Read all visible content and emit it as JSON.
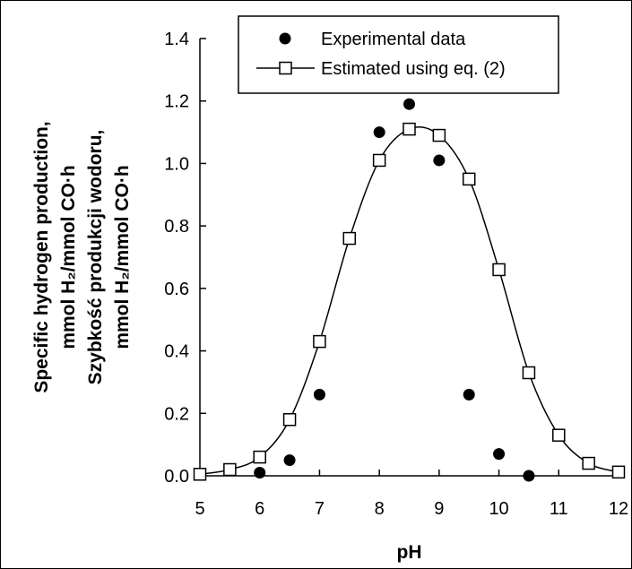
{
  "chart_data": {
    "type": "scatter",
    "xlabel": "pH",
    "ylabel_lines": [
      "Specific hydrogen production,",
      "mmol H₂/mmol CO·h",
      "Szybkość produkcji wodoru,",
      "mmol H₂/mmol CO·h"
    ],
    "xlim": [
      5,
      12
    ],
    "ylim": [
      0,
      1.4
    ],
    "xticks": [
      "5",
      "6",
      "7",
      "8",
      "9",
      "10",
      "11",
      "12"
    ],
    "yticks": [
      "0.0",
      "0.2",
      "0.4",
      "0.6",
      "0.8",
      "1.0",
      "1.2",
      "1.4"
    ],
    "grid": false,
    "legend_position": "top-center",
    "series": [
      {
        "name": "Experimental data",
        "marker": "filled-circle",
        "color": "#000000",
        "points": [
          [
            6.0,
            0.01
          ],
          [
            6.5,
            0.05
          ],
          [
            7.0,
            0.26
          ],
          [
            8.0,
            1.1
          ],
          [
            8.5,
            1.19
          ],
          [
            9.0,
            1.01
          ],
          [
            9.5,
            0.26
          ],
          [
            10.0,
            0.07
          ],
          [
            10.5,
            0.0
          ]
        ]
      },
      {
        "name": "Estimated using eq. (2)",
        "marker": "open-square",
        "color": "#000000",
        "points": [
          [
            5.0,
            0.005
          ],
          [
            5.5,
            0.02
          ],
          [
            6.0,
            0.06
          ],
          [
            6.5,
            0.18
          ],
          [
            7.0,
            0.43
          ],
          [
            7.5,
            0.76
          ],
          [
            8.0,
            1.01
          ],
          [
            8.5,
            1.11
          ],
          [
            9.0,
            1.09
          ],
          [
            9.5,
            0.95
          ],
          [
            10.0,
            0.66
          ],
          [
            10.5,
            0.33
          ],
          [
            11.0,
            0.13
          ],
          [
            11.5,
            0.04
          ],
          [
            12.0,
            0.012
          ]
        ]
      }
    ]
  }
}
